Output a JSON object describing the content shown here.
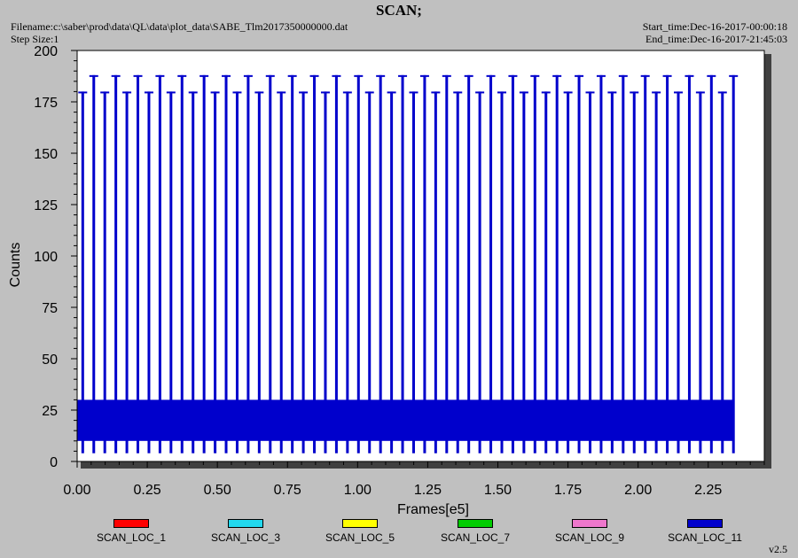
{
  "header": {
    "title": "SCAN;",
    "filename": "Filename:c:\\saber\\prod\\data\\QL\\data\\plot_data\\SABE_Tlm2017350000000.dat",
    "step_size": "Step Size:1",
    "start_time": "Start_time:Dec-16-2017-00:00:18",
    "end_time": "End_time:Dec-16-2017-21:45:03"
  },
  "version": "v2.5",
  "chart_data": {
    "type": "line",
    "title": "SCAN;",
    "xlabel": "Frames[e5]",
    "ylabel": "Counts",
    "xlim": [
      0,
      2.45
    ],
    "ylim": [
      0,
      200
    ],
    "x_ticks": [
      "0.00",
      "0.25",
      "0.50",
      "0.75",
      "1.00",
      "1.25",
      "1.50",
      "1.75",
      "2.00",
      "2.25"
    ],
    "y_ticks": [
      "0",
      "25",
      "50",
      "75",
      "100",
      "125",
      "150",
      "175",
      "200"
    ],
    "legend_position": "bottom",
    "grid": false,
    "series": [
      {
        "name": "SCAN_LOC_1",
        "color": "#ff0000"
      },
      {
        "name": "SCAN_LOC_3",
        "color": "#22d8ee"
      },
      {
        "name": "SCAN_LOC_5",
        "color": "#ffff00"
      },
      {
        "name": "SCAN_LOC_7",
        "color": "#00cc00"
      },
      {
        "name": "SCAN_LOC_9",
        "color": "#ee77cc"
      },
      {
        "name": "SCAN_LOC_11",
        "color": "#0000cc"
      }
    ],
    "band": {
      "series": "SCAN_LOC_11",
      "x_range": [
        0.0,
        2.34
      ],
      "y_range": [
        10,
        30
      ]
    },
    "spikes": {
      "series": "SCAN_LOC_11",
      "x_start": 0.02,
      "x_end": 2.34,
      "count": 60,
      "low_peak": 180,
      "high_peak": 188,
      "floor": 4
    }
  }
}
